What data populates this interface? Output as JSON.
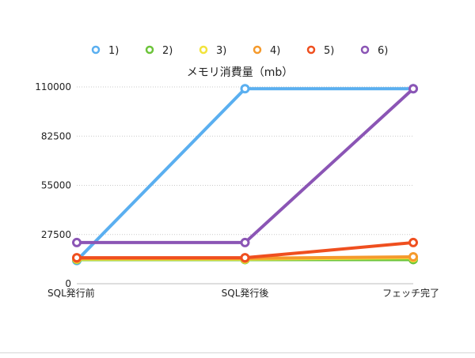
{
  "chart_data": {
    "type": "line",
    "title": "メモリ消費量（mb）",
    "xlabel": "",
    "ylabel": "",
    "categories": [
      "SQL発行前",
      "SQL発行後",
      "フェッチ完了"
    ],
    "ylim": [
      0,
      110000
    ],
    "yticks": [
      "0",
      "27500",
      "55000",
      "82500",
      "110000"
    ],
    "ytick_values": [
      0,
      27500,
      55000,
      82500,
      110000
    ],
    "grid": true,
    "legend_position": "top",
    "series": [
      {
        "name": "1)",
        "color": "#5aaff0",
        "values": [
          13000,
          109000,
          109000
        ]
      },
      {
        "name": "2)",
        "color": "#6cc43a",
        "values": [
          13500,
          13500,
          13500
        ]
      },
      {
        "name": "3)",
        "color": "#f2e33c",
        "values": [
          13800,
          13800,
          14500
        ]
      },
      {
        "name": "4)",
        "color": "#f59a2c",
        "values": [
          14200,
          14200,
          15000
        ]
      },
      {
        "name": "5)",
        "color": "#ef4f1f",
        "values": [
          14500,
          14500,
          23000
        ]
      },
      {
        "name": "6)",
        "color": "#8b55b5",
        "values": [
          23000,
          23000,
          109000
        ]
      }
    ]
  }
}
